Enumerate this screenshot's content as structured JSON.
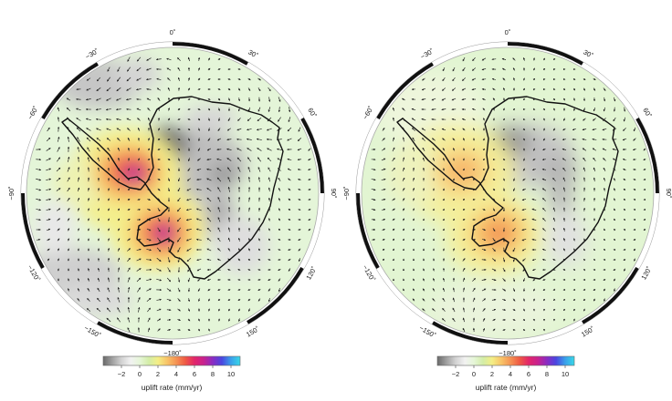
{
  "panels": [
    {
      "id": "left",
      "degree_labels": {
        "0": "0˚",
        "30": "30˚",
        "60": "60˚",
        "90": "90˚",
        "120": "120˚",
        "150": "150˚",
        "180": "−180˚",
        "-150": "−150˚",
        "-120": "−120˚",
        "-90": "−90˚",
        "-60": "−60˚",
        "-30": "−30˚"
      },
      "colorbar": {
        "ticks": [
          "−2",
          "0",
          "2",
          "4",
          "6",
          "8",
          "10"
        ],
        "label": "uplift rate (mm/yr)"
      },
      "anomalies": [
        {
          "name": "antarctic-peninsula-high",
          "value_mm_yr": 7
        },
        {
          "name": "amundsen-sea-high",
          "value_mm_yr": 8
        },
        {
          "name": "east-antarctica-low",
          "value_mm_yr": -2.5
        }
      ]
    },
    {
      "id": "right",
      "degree_labels": {
        "0": "0˚",
        "30": "30˚",
        "60": "60˚",
        "90": "90˚",
        "120": "120˚",
        "150": "150˚",
        "180": "−180˚",
        "-150": "−150˚",
        "-120": "−120˚",
        "-90": "−90˚",
        "-60": "−60˚",
        "-30": "−30˚"
      },
      "colorbar": {
        "ticks": [
          "−2",
          "0",
          "2",
          "4",
          "6",
          "8",
          "10"
        ],
        "label": "uplift rate (mm/yr)"
      },
      "anomalies": [
        {
          "name": "antarctic-peninsula-high",
          "value_mm_yr": 3
        },
        {
          "name": "amundsen-sea-high",
          "value_mm_yr": 4
        },
        {
          "name": "east-antarctica-low",
          "value_mm_yr": -2
        }
      ]
    }
  ],
  "colorscale": {
    "range_mm_yr": [
      -4,
      11
    ],
    "colors": [
      "#6a6a6a",
      "#a0a0a0",
      "#d2d2d2",
      "#f2f2f2",
      "#e6f6d8",
      "#d3eda8",
      "#f4ee86",
      "#f8c468",
      "#f59454",
      "#ef5a44",
      "#e2266a",
      "#c8228e",
      "#8a2cc2",
      "#4a46e0",
      "#3aa0ea",
      "#38d8e8"
    ]
  }
}
